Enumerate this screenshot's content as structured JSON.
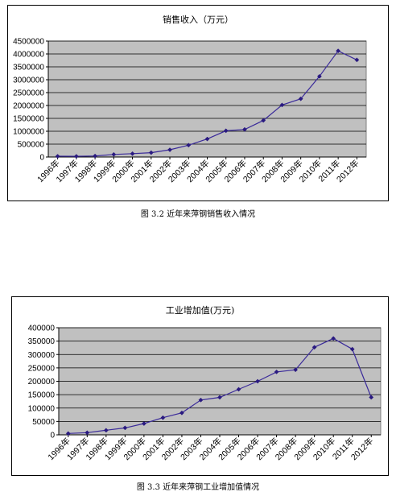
{
  "chart_data": [
    {
      "type": "line",
      "title": "销售收入（万元）",
      "categories": [
        "1996年",
        "1997年",
        "1998年",
        "1999年",
        "2000年",
        "2001年",
        "2002年",
        "2003年",
        "2004年",
        "2005年",
        "2006年",
        "2007年",
        "2008年",
        "2009年",
        "2010年",
        "2011年",
        "2012年"
      ],
      "series": [
        {
          "values": [
            30000,
            28000,
            40000,
            100000,
            130000,
            170000,
            280000,
            460000,
            700000,
            1020000,
            1070000,
            1420000,
            2020000,
            2260000,
            3130000,
            4120000,
            3770000
          ]
        }
      ],
      "ylim": [
        0,
        4500000
      ],
      "yticks": [
        "0",
        "500000",
        "1000000",
        "1500000",
        "2000000",
        "2500000",
        "3000000",
        "3500000",
        "4000000",
        "4500000"
      ],
      "grid": true,
      "colors": {
        "plot_bg": "#c0c0c0",
        "line": "#3a2a9a",
        "grid": "#000000"
      }
    },
    {
      "type": "line",
      "title": "工业增加值(万元)",
      "categories": [
        "1996年",
        "1997年",
        "1998年",
        "1999年",
        "2000年",
        "2001年",
        "2002年",
        "2003年",
        "2004年",
        "2005年",
        "2006年",
        "2007年",
        "2008年",
        "2009年",
        "2010年",
        "2011年",
        "2012年"
      ],
      "series": [
        {
          "values": [
            5000,
            8000,
            17000,
            26000,
            42000,
            64000,
            82000,
            130000,
            140000,
            170000,
            200000,
            235000,
            243000,
            327000,
            360000,
            320000,
            140000
          ]
        }
      ],
      "ylim": [
        0,
        400000
      ],
      "yticks": [
        "0",
        "50000",
        "100000",
        "150000",
        "200000",
        "250000",
        "300000",
        "350000",
        "400000"
      ],
      "grid": true,
      "colors": {
        "plot_bg": "#c0c0c0",
        "line": "#3a2a9a",
        "grid": "#000000"
      }
    }
  ],
  "captions": {
    "figure1": "图 3.2  近年来萍钢销售收入情况",
    "figure2": "图 3.3  近年来萍钢工业增加值情况"
  }
}
